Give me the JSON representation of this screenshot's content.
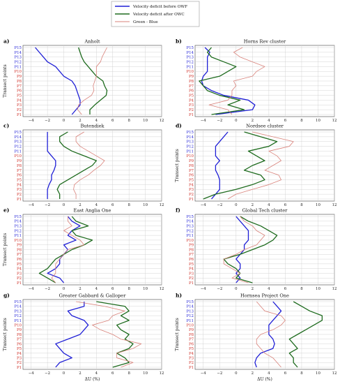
{
  "legend": {
    "items": [
      {
        "label": "Velocity deficit before OWF",
        "color": "#1f1fd6"
      },
      {
        "label": "Velocity deficit after OWC",
        "color": "#1e6b1e"
      },
      {
        "label": "Green - Blue",
        "color": "#d9827a"
      }
    ]
  },
  "colors": {
    "blue": "#1f1fd6",
    "green": "#1e6b1e",
    "diff": "#d9827a",
    "label_blue": "#1f1fd6",
    "label_red": "#d0342c"
  },
  "chart_data": [
    {
      "type": "line",
      "letter": "a)",
      "title": "Anholt",
      "xlabel": "",
      "ylabel": "Transect points",
      "xlim": [
        -5,
        12
      ],
      "xticks": [
        -4,
        -2,
        0,
        2,
        4,
        6,
        8,
        10,
        12
      ],
      "y_categories": [
        "P1",
        "P2",
        "P3",
        "P4",
        "P5",
        "P6",
        "P7",
        "P8",
        "P9",
        "P10",
        "P11",
        "P12",
        "P13",
        "P14",
        "P15"
      ],
      "y_label_colors": [
        "red",
        "red",
        "red",
        "red",
        "red",
        "red",
        "red",
        "red",
        "red",
        "red",
        "blue",
        "blue",
        "blue",
        "blue",
        "blue"
      ],
      "grid": true,
      "series": [
        {
          "name": "Velocity deficit before OWF",
          "color": "#1f1fd6",
          "values": [
            1.0,
            1.5,
            2.0,
            2.0,
            1.8,
            1.6,
            1.4,
            1.0,
            0.0,
            -0.5,
            -1.0,
            -2.0,
            -2.5,
            -3.0,
            -3.5
          ]
        },
        {
          "name": "Velocity deficit after OWC",
          "color": "#1e6b1e",
          "values": [
            3.2,
            3.2,
            3.8,
            4.5,
            5.2,
            5.3,
            5.0,
            4.8,
            4.0,
            3.5,
            3.0,
            2.5,
            2.2,
            2.0,
            1.8
          ]
        },
        {
          "name": "Green - Blue",
          "color": "#d9827a",
          "values": [
            2.2,
            1.7,
            1.8,
            2.5,
            3.4,
            3.7,
            3.6,
            3.8,
            4.0,
            4.0,
            4.0,
            4.5,
            4.7,
            5.0,
            5.3
          ]
        }
      ]
    },
    {
      "type": "line",
      "letter": "b)",
      "title": "Horns Rev cluster",
      "xlabel": "",
      "ylabel": "",
      "xlim": [
        -5,
        12
      ],
      "xticks": [
        -4,
        -2,
        0,
        2,
        4,
        6,
        8,
        10,
        12
      ],
      "y_categories": [
        "P1",
        "P2",
        "P3",
        "P4",
        "P5",
        "P6",
        "P7",
        "P8",
        "P9",
        "P10",
        "P11",
        "P12",
        "P13",
        "P14",
        "P15"
      ],
      "y_label_colors": [
        "red",
        "red",
        "red",
        "red",
        "red",
        "red",
        "red",
        "red",
        "red",
        "red",
        "blue",
        "blue",
        "blue",
        "blue",
        "blue"
      ],
      "grid": true,
      "series": [
        {
          "name": "Velocity deficit before OWF",
          "color": "#1f1fd6",
          "values": [
            -2.5,
            2.0,
            2.3,
            1.5,
            -1.5,
            -3.0,
            -4.0,
            -4.2,
            -4.0,
            -3.5,
            -3.5,
            -3.5,
            -3.5,
            -3.2,
            -3.8
          ]
        },
        {
          "name": "Velocity deficit after OWC",
          "color": "#1e6b1e",
          "values": [
            -3.0,
            1.0,
            -1.0,
            0.5,
            -2.0,
            -3.5,
            -4.0,
            -4.5,
            -2.0,
            -1.0,
            0.0,
            -1.5,
            -3.0,
            -3.5,
            -3.0
          ]
        },
        {
          "name": "Green - Blue",
          "color": "#d9827a",
          "values": [
            -0.5,
            -1.0,
            -3.3,
            -1.0,
            -0.5,
            -0.5,
            0.0,
            -0.3,
            2.0,
            2.5,
            3.5,
            2.0,
            0.5,
            -0.3,
            0.8
          ]
        }
      ]
    },
    {
      "type": "line",
      "letter": "c)",
      "title": "Butendiek",
      "xlabel": "",
      "ylabel": "",
      "xlim": [
        -5,
        12
      ],
      "xticks": [
        -4,
        -2,
        0,
        2,
        4,
        6,
        8,
        10,
        12
      ],
      "y_categories": [
        "P1",
        "P2",
        "P3",
        "P4",
        "P5",
        "P6",
        "P7",
        "P8",
        "P9",
        "P10",
        "P11",
        "P12",
        "P13",
        "P14",
        "P15"
      ],
      "y_label_colors": [
        "red",
        "red",
        "red",
        "red",
        "red",
        "red",
        "red",
        "red",
        "red",
        "red",
        "blue",
        "blue",
        "blue",
        "blue",
        "blue"
      ],
      "grid": true,
      "series": [
        {
          "name": "Velocity deficit before OWF",
          "color": "#1f1fd6",
          "values": [
            -2.0,
            -2.0,
            -2.0,
            -1.8,
            -1.5,
            -1.5,
            -1.2,
            -1.0,
            -1.0,
            -1.5,
            -2.0,
            -2.0,
            -2.0,
            -2.0,
            -2.0
          ]
        },
        {
          "name": "Velocity deficit after OWC",
          "color": "#1e6b1e",
          "values": [
            -0.5,
            -0.5,
            -0.8,
            -0.5,
            0.5,
            1.5,
            2.5,
            3.5,
            4.0,
            2.5,
            1.0,
            0.0,
            -0.5,
            -0.5,
            0.5
          ]
        },
        {
          "name": "Green - Blue",
          "color": "#d9827a",
          "values": [
            1.5,
            1.5,
            1.2,
            1.3,
            2.0,
            3.0,
            3.7,
            4.5,
            5.0,
            4.0,
            3.0,
            2.0,
            1.5,
            1.5,
            2.5
          ]
        }
      ]
    },
    {
      "type": "line",
      "letter": "d)",
      "title": "Nordsee cluster",
      "xlabel": "",
      "ylabel": "Transect points",
      "xlim": [
        -5,
        12
      ],
      "xticks": [
        -4,
        -2,
        0,
        2,
        4,
        6,
        8,
        10,
        12
      ],
      "y_categories": [
        "P1",
        "P2",
        "P3",
        "P4",
        "P5",
        "P6",
        "P7",
        "P8",
        "P9",
        "P10",
        "P11",
        "P12",
        "P13",
        "P14",
        "P15"
      ],
      "y_label_colors": [
        "red",
        "red",
        "red",
        "red",
        "red",
        "red",
        "red",
        "red",
        "red",
        "red",
        "blue",
        "blue",
        "blue",
        "blue",
        "blue"
      ],
      "grid": true,
      "series": [
        {
          "name": "Velocity deficit before OWF",
          "color": "#1f1fd6",
          "values": [
            -3.0,
            -2.5,
            -2.0,
            -2.0,
            -2.0,
            -2.2,
            -2.5,
            -2.5,
            -2.0,
            -2.5,
            -2.5,
            -2.5,
            -2.0,
            -1.5,
            -1.0
          ]
        },
        {
          "name": "Velocity deficit after OWC",
          "color": "#1e6b1e",
          "values": [
            -4.0,
            -2.5,
            0.0,
            2.0,
            3.5,
            3.0,
            1.0,
            2.0,
            3.5,
            2.5,
            1.5,
            4.0,
            5.0,
            3.0,
            1.0
          ]
        },
        {
          "name": "Green - Blue",
          "color": "#d9827a",
          "values": [
            -1.0,
            0.0,
            2.0,
            4.0,
            5.5,
            5.2,
            3.5,
            4.5,
            5.5,
            5.0,
            4.0,
            6.5,
            7.0,
            4.5,
            2.0
          ]
        }
      ]
    },
    {
      "type": "line",
      "letter": "e)",
      "title": "East Anglia One",
      "xlabel": "",
      "ylabel": "Transect points",
      "xlim": [
        -5,
        12
      ],
      "xticks": [
        -4,
        -2,
        0,
        2,
        4,
        6,
        8,
        10,
        12
      ],
      "y_categories": [
        "P1",
        "P2",
        "P3",
        "P4",
        "P5",
        "P6",
        "P7",
        "P8",
        "P9",
        "P10",
        "P11",
        "P12",
        "P13",
        "P14",
        "P15"
      ],
      "y_label_colors": [
        "red",
        "red",
        "red",
        "red",
        "red",
        "red",
        "red",
        "red",
        "red",
        "red",
        "blue",
        "blue",
        "blue",
        "blue",
        "blue"
      ],
      "grid": true,
      "series": [
        {
          "name": "Velocity deficit before OWF",
          "color": "#1f1fd6",
          "values": [
            0.0,
            -0.5,
            -2.0,
            -1.0,
            -0.5,
            -0.5,
            0.0,
            0.5,
            0.0,
            1.5,
            0.5,
            1.0,
            2.0,
            1.0,
            0.5
          ]
        },
        {
          "name": "Velocity deficit after OWC",
          "color": "#1e6b1e",
          "values": [
            -1.0,
            -2.0,
            -3.0,
            -2.0,
            -1.5,
            -1.0,
            0.0,
            1.0,
            2.5,
            3.5,
            1.5,
            1.0,
            3.0,
            1.5,
            1.0
          ]
        },
        {
          "name": "Green - Blue",
          "color": "#d9827a",
          "values": [
            -1.0,
            -1.5,
            -1.0,
            -1.0,
            -1.0,
            -0.5,
            0.0,
            0.5,
            2.5,
            2.0,
            1.0,
            0.0,
            1.0,
            0.5,
            0.5
          ]
        }
      ]
    },
    {
      "type": "line",
      "letter": "f)",
      "title": "Global Tech cluster",
      "xlabel": "",
      "ylabel": "",
      "xlim": [
        -5,
        12
      ],
      "xticks": [
        -4,
        -2,
        0,
        2,
        4,
        6,
        8,
        10,
        12
      ],
      "y_categories": [
        "P1",
        "P2",
        "P3",
        "P4",
        "P5",
        "P6",
        "P7",
        "P8",
        "P9",
        "P10",
        "P11",
        "P12",
        "P13",
        "P14",
        "P15"
      ],
      "y_label_colors": [
        "red",
        "red",
        "red",
        "red",
        "red",
        "red",
        "red",
        "red",
        "red",
        "red",
        "blue",
        "blue",
        "blue",
        "blue",
        "blue"
      ],
      "grid": true,
      "series": [
        {
          "name": "Velocity deficit before OWF",
          "color": "#1f1fd6",
          "values": [
            0.0,
            0.5,
            0.0,
            0.5,
            0.5,
            0.0,
            0.5,
            1.0,
            1.0,
            1.5,
            1.5,
            1.5,
            1.0,
            0.5,
            0.0
          ]
        },
        {
          "name": "Velocity deficit after OWC",
          "color": "#1e6b1e",
          "values": [
            2.0,
            0.0,
            0.5,
            0.0,
            -1.0,
            -1.5,
            0.5,
            2.0,
            3.5,
            4.5,
            5.0,
            4.0,
            3.0,
            1.5,
            0.5
          ]
        },
        {
          "name": "Green - Blue",
          "color": "#d9827a",
          "values": [
            1.5,
            -0.5,
            0.5,
            -0.5,
            -1.5,
            -1.5,
            0.0,
            1.0,
            2.5,
            3.0,
            3.5,
            2.5,
            2.0,
            1.0,
            0.5
          ]
        }
      ]
    },
    {
      "type": "line",
      "letter": "g)",
      "title": "Greater Gabbard & Galloper",
      "xlabel": "ΔU (%)",
      "ylabel": "Transect points",
      "xlim": [
        -5,
        12
      ],
      "xticks": [
        -4,
        -2,
        0,
        2,
        4,
        6,
        8,
        10,
        12
      ],
      "y_categories": [
        "P1",
        "P2",
        "P3",
        "P4",
        "P5",
        "P6",
        "P7",
        "P8",
        "P9",
        "P10",
        "P11",
        "P12",
        "P13",
        "P14",
        "P15"
      ],
      "y_label_colors": [
        "red",
        "red",
        "red",
        "red",
        "red",
        "red",
        "red",
        "red",
        "red",
        "red",
        "blue",
        "blue",
        "blue",
        "blue",
        "blue"
      ],
      "grid": true,
      "series": [
        {
          "name": "Velocity deficit before OWF",
          "color": "#1f1fd6",
          "values": [
            -1.0,
            -0.5,
            1.0,
            0.0,
            -0.5,
            -1.0,
            0.5,
            2.0,
            2.5,
            3.0,
            2.5,
            1.0,
            0.5,
            2.5,
            2.5
          ]
        },
        {
          "name": "Velocity deficit after OWC",
          "color": "#1e6b1e",
          "values": [
            6.0,
            8.0,
            7.5,
            6.5,
            8.0,
            8.5,
            7.5,
            8.0,
            7.0,
            6.5,
            8.0,
            7.0,
            8.0,
            7.5,
            4.0
          ]
        },
        {
          "name": "Green - Blue",
          "color": "#d9827a",
          "values": [
            7.0,
            8.5,
            6.5,
            6.5,
            8.5,
            9.5,
            7.0,
            6.0,
            4.5,
            3.5,
            5.5,
            6.0,
            7.5,
            5.0,
            1.5
          ]
        }
      ]
    },
    {
      "type": "line",
      "letter": "h)",
      "title": "Hornsea Project One",
      "xlabel": "ΔU (%)",
      "ylabel": "Transect points",
      "xlim": [
        -5,
        12
      ],
      "xticks": [
        -4,
        -2,
        0,
        2,
        4,
        6,
        8,
        10,
        12
      ],
      "y_categories": [
        "P1",
        "P2",
        "P3",
        "P4",
        "P5",
        "P6",
        "P7",
        "P8",
        "P9",
        "P10",
        "P11",
        "P12",
        "P13",
        "P14",
        "P15"
      ],
      "y_label_colors": [
        "red",
        "red",
        "red",
        "red",
        "red",
        "red",
        "red",
        "red",
        "red",
        "red",
        "blue",
        "blue",
        "blue",
        "blue",
        "blue"
      ],
      "grid": true,
      "series": [
        {
          "name": "Velocity deficit before OWF",
          "color": "#1f1fd6",
          "values": [
            2.5,
            2.3,
            2.5,
            3.0,
            4.5,
            4.7,
            4.5,
            4.0,
            4.0,
            4.0,
            4.5,
            5.0,
            5.5,
            5.0,
            4.5
          ]
        },
        {
          "name": "Velocity deficit after OWC",
          "color": "#1e6b1e",
          "values": [
            7.5,
            7.0,
            7.0,
            6.5,
            7.5,
            7.0,
            6.5,
            7.5,
            8.5,
            9.5,
            10.5,
            10.5,
            9.0,
            8.0,
            7.0
          ]
        },
        {
          "name": "Green - Blue",
          "color": "#d9827a",
          "values": [
            5.5,
            5.0,
            4.5,
            3.5,
            3.0,
            2.5,
            2.5,
            3.0,
            4.5,
            5.5,
            6.0,
            5.5,
            3.5,
            3.0,
            2.5
          ]
        }
      ]
    }
  ]
}
